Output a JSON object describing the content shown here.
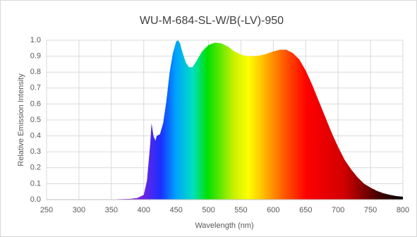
{
  "chart_data": {
    "type": "area",
    "title": "WU-M-684-SL-W/B(-LV)-950",
    "x_label": "Wavelength (nm)",
    "y_label": "Relative Emission Intensity",
    "x": [
      350,
      360,
      380,
      390,
      400,
      405,
      410,
      412,
      415,
      418,
      420,
      425,
      430,
      435,
      440,
      445,
      450,
      453,
      456,
      460,
      465,
      470,
      475,
      480,
      490,
      500,
      510,
      520,
      530,
      540,
      550,
      560,
      570,
      580,
      590,
      600,
      610,
      620,
      630,
      640,
      650,
      660,
      670,
      680,
      690,
      700,
      710,
      720,
      730,
      740,
      750,
      760,
      770,
      780,
      790,
      800
    ],
    "y": [
      0,
      0.003,
      0.005,
      0.01,
      0.03,
      0.12,
      0.35,
      0.48,
      0.4,
      0.37,
      0.4,
      0.41,
      0.48,
      0.62,
      0.8,
      0.92,
      0.99,
      1.0,
      0.98,
      0.92,
      0.86,
      0.83,
      0.83,
      0.86,
      0.93,
      0.97,
      0.985,
      0.98,
      0.96,
      0.93,
      0.91,
      0.9,
      0.9,
      0.905,
      0.915,
      0.93,
      0.94,
      0.94,
      0.92,
      0.88,
      0.81,
      0.72,
      0.62,
      0.52,
      0.42,
      0.33,
      0.25,
      0.19,
      0.14,
      0.1,
      0.075,
      0.055,
      0.04,
      0.03,
      0.022,
      0.018
    ],
    "xlim": [
      250,
      800
    ],
    "xticks": [
      250,
      300,
      350,
      400,
      450,
      500,
      550,
      600,
      650,
      700,
      750,
      800
    ],
    "ylim": [
      0,
      1
    ],
    "yticks": [
      {
        "value": 0,
        "label": "0.0"
      },
      0.1,
      0.2,
      0.3,
      0.4,
      0.5,
      0.6,
      0.7,
      0.8,
      0.9,
      {
        "value": 1,
        "label": "1.0"
      }
    ],
    "grid": true
  }
}
